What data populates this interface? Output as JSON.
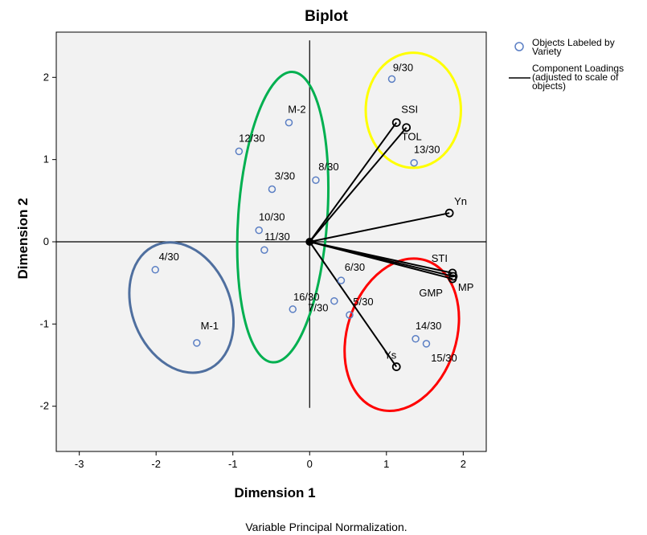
{
  "chart_data": {
    "type": "scatter",
    "title": "Biplot",
    "xlabel": "Dimension 1",
    "ylabel": "Dimension 2",
    "xlim": [
      -3.3,
      2.3
    ],
    "ylim": [
      -2.55,
      2.55
    ],
    "x_ticks": [
      -3,
      -2,
      -1,
      0,
      1,
      2
    ],
    "y_ticks": [
      -2,
      -1,
      0,
      1,
      2
    ],
    "x_tick_labels": [
      "-3",
      "-2",
      "-1",
      "0",
      "1",
      "2"
    ],
    "y_tick_labels": [
      "-2",
      "-1",
      "0",
      "1",
      "2"
    ],
    "note": "Variable Principal Normalization.",
    "grid": false,
    "legend_position": "right",
    "legend": [
      {
        "type": "marker",
        "text": [
          "Objects Labeled by",
          "Variety"
        ]
      },
      {
        "type": "line",
        "text": [
          "Component Loadings",
          "(adjusted to scale of",
          "objects)"
        ]
      }
    ],
    "objects": [
      {
        "label": "9/30",
        "x": 1.07,
        "y": 1.98
      },
      {
        "label": "M-2",
        "x": -0.27,
        "y": 1.45
      },
      {
        "label": "12/30",
        "x": -0.92,
        "y": 1.1
      },
      {
        "label": "13/30",
        "x": 1.36,
        "y": 0.96
      },
      {
        "label": "3/30",
        "x": -0.49,
        "y": 0.64
      },
      {
        "label": "8/30",
        "x": 0.08,
        "y": 0.75
      },
      {
        "label": "10/30",
        "x": -0.66,
        "y": 0.14
      },
      {
        "label": "11/30",
        "x": -0.59,
        "y": -0.1
      },
      {
        "label": "4/30",
        "x": -2.01,
        "y": -0.34
      },
      {
        "label": "6/30",
        "x": 0.41,
        "y": -0.47
      },
      {
        "label": "16/30",
        "x": -0.22,
        "y": -0.82
      },
      {
        "label": "7/30",
        "x": 0.32,
        "y": -0.72
      },
      {
        "label": "5/30",
        "x": 0.52,
        "y": -0.89
      },
      {
        "label": "M-1",
        "x": -1.47,
        "y": -1.23
      },
      {
        "label": "14/30",
        "x": 1.38,
        "y": -1.18
      },
      {
        "label": "15/30",
        "x": 1.52,
        "y": -1.24
      }
    ],
    "loadings": [
      {
        "label": "SSI",
        "x": 1.13,
        "y": 1.45
      },
      {
        "label": "TOL",
        "x": 1.26,
        "y": 1.39
      },
      {
        "label": "Yn",
        "x": 1.82,
        "y": 0.35
      },
      {
        "label": "STI",
        "x": 1.86,
        "y": -0.38
      },
      {
        "label": "MP",
        "x": 1.87,
        "y": -0.42
      },
      {
        "label": "GMP",
        "x": 1.86,
        "y": -0.45
      },
      {
        "label": "Ys",
        "x": 1.13,
        "y": -1.52
      }
    ],
    "group_ellipses": [
      {
        "color": "#ffff00",
        "cx": 1.35,
        "cy": 1.6,
        "rx": 0.62,
        "ry": 0.7,
        "rotate": 0
      },
      {
        "color": "#00b050",
        "cx": -0.35,
        "cy": 0.3,
        "rx": 0.58,
        "ry": 1.77,
        "rotate": 4
      },
      {
        "color": "#ff0000",
        "cx": 1.2,
        "cy": -1.13,
        "rx": 0.71,
        "ry": 0.95,
        "rotate": 18
      },
      {
        "color": "#4f6f9f",
        "cx": -1.67,
        "cy": -0.8,
        "rx": 0.64,
        "ry": 0.82,
        "rotate": -22
      }
    ],
    "colors": {
      "plot_background": "#f2f2f2",
      "marker": "#5b7fc4",
      "loading_line": "#000000"
    }
  }
}
